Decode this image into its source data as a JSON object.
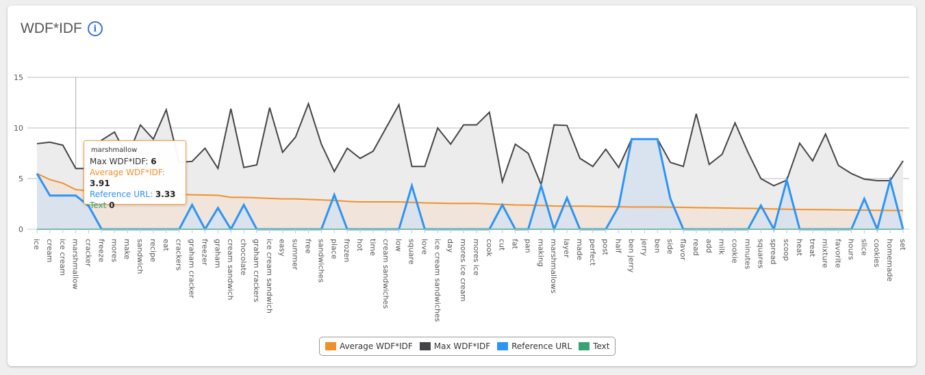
{
  "title": "WDF*IDF",
  "title_icon": "info-icon",
  "chart_data": {
    "type": "area",
    "title": "WDF*IDF",
    "ylim": [
      0,
      15
    ],
    "yticks": [
      0,
      5,
      10,
      15
    ],
    "grid": true,
    "legend_position": "bottom",
    "categories": [
      "ice",
      "cream",
      "ice cream",
      "marshmallow",
      "cracker",
      "freeze",
      "mores",
      "make",
      "sandwich",
      "recipe",
      "eat",
      "crackers",
      "graham cracker",
      "freezer",
      "graham",
      "cream sandwich",
      "chocolate",
      "graham crackers",
      "ice cream sandwich",
      "easy",
      "summer",
      "free",
      "sandwiches",
      "place",
      "frozen",
      "hot",
      "time",
      "cream sandwiches",
      "low",
      "square",
      "love",
      "ice cream sandwiches",
      "day",
      "mores ice cream",
      "mores ice",
      "cook",
      "cut",
      "fat",
      "pan",
      "making",
      "marshmallows",
      "layer",
      "made",
      "perfect",
      "post",
      "half",
      "ben jerry",
      "jerry",
      "ben",
      "side",
      "flavor",
      "read",
      "add",
      "milk",
      "cookie",
      "minutes",
      "squares",
      "spread",
      "scoop",
      "heat",
      "treat",
      "mixture",
      "favorite",
      "hours",
      "slice",
      "cookies",
      "homemade",
      "set"
    ],
    "series": [
      {
        "name": "Max WDF*IDF",
        "color": "#444448",
        "fill": "#ececec",
        "values": [
          8.45,
          8.6,
          8.3,
          6,
          6,
          8.8,
          9.6,
          7.1,
          10.3,
          8.9,
          11.8,
          6.6,
          6.7,
          8.0,
          6.0,
          11.9,
          6.1,
          6.35,
          12.0,
          7.6,
          9.1,
          12.4,
          8.4,
          5.7,
          8.0,
          7.0,
          7.7,
          10.0,
          12.3,
          6.2,
          6.2,
          10.0,
          8.4,
          10.3,
          10.3,
          11.55,
          4.7,
          8.4,
          7.5,
          4.4,
          10.3,
          10.25,
          7.0,
          6.2,
          7.9,
          6.1,
          8.9,
          8.9,
          8.9,
          6.6,
          6.2,
          11.4,
          6.4,
          7.4,
          10.5,
          7.6,
          5.0,
          4.3,
          4.85,
          8.5,
          6.75,
          9.4,
          6.3,
          5.5,
          4.95,
          4.8,
          4.8,
          6.75
        ]
      },
      {
        "name": "Average WDF*IDF",
        "color": "#f0902a",
        "fill": "#f3e2d6",
        "values": [
          5.5,
          4.9,
          4.55,
          3.91,
          3.8,
          3.7,
          3.65,
          3.6,
          3.55,
          3.5,
          3.5,
          3.45,
          3.4,
          3.38,
          3.35,
          3.15,
          3.15,
          3.1,
          3.05,
          3.0,
          3.0,
          2.95,
          2.9,
          2.85,
          2.75,
          2.7,
          2.7,
          2.7,
          2.7,
          2.65,
          2.6,
          2.58,
          2.55,
          2.55,
          2.55,
          2.5,
          2.45,
          2.4,
          2.38,
          2.35,
          2.3,
          2.28,
          2.28,
          2.26,
          2.24,
          2.22,
          2.2,
          2.2,
          2.2,
          2.18,
          2.16,
          2.14,
          2.12,
          2.1,
          2.08,
          2.06,
          2.04,
          2.0,
          1.98,
          1.95,
          1.94,
          1.93,
          1.92,
          1.9,
          1.88,
          1.87,
          1.86,
          1.85
        ]
      },
      {
        "name": "Reference URL",
        "color": "#2b94f5",
        "fill": "#d6e2f0",
        "values": [
          5.5,
          3.33,
          3.33,
          3.33,
          2.3,
          0,
          0,
          0,
          0,
          0,
          0,
          0,
          2.4,
          0,
          2.1,
          0,
          2.4,
          0,
          0,
          0,
          0,
          0,
          0,
          3.4,
          0,
          0,
          0,
          0,
          0,
          4.3,
          0,
          0,
          0,
          0,
          0,
          0,
          2.4,
          0,
          0,
          4.3,
          0,
          3.1,
          0,
          0,
          0,
          2.25,
          8.9,
          8.9,
          8.9,
          3.0,
          0,
          0,
          0,
          0,
          0,
          0,
          2.35,
          0,
          4.85,
          0,
          0,
          0,
          0,
          0,
          3.0,
          0,
          4.85,
          0
        ]
      },
      {
        "name": "Text",
        "color": "#3aa374",
        "fill": "none",
        "values": [
          0,
          0,
          0,
          0,
          0,
          0,
          0,
          0,
          0,
          0,
          0,
          0,
          0,
          0,
          0,
          0,
          0,
          0,
          0,
          0,
          0,
          0,
          0,
          0,
          0,
          0,
          0,
          0,
          0,
          0,
          0,
          0,
          0,
          0,
          0,
          0,
          0,
          0,
          0,
          0,
          0,
          0,
          0,
          0,
          0,
          0,
          0,
          0,
          0,
          0,
          0,
          0,
          0,
          0,
          0,
          0,
          0,
          0,
          0,
          0,
          0,
          0,
          0,
          0,
          0,
          0,
          0,
          0
        ]
      }
    ]
  },
  "tooltip": {
    "category": "marshmallow",
    "max_label": "Max WDF*IDF:",
    "max_value": "6",
    "avg_label": "Average WDF*IDF:",
    "avg_value": "3.91",
    "ref_label": "Reference URL:",
    "ref_value": "3.33",
    "text_label": "Text",
    "text_value": "0"
  },
  "legend": [
    "Average WDF*IDF",
    "Max WDF*IDF",
    "Reference URL",
    "Text"
  ],
  "legend_colors": [
    "#f0902a",
    "#444448",
    "#2b94f5",
    "#3aa374"
  ]
}
